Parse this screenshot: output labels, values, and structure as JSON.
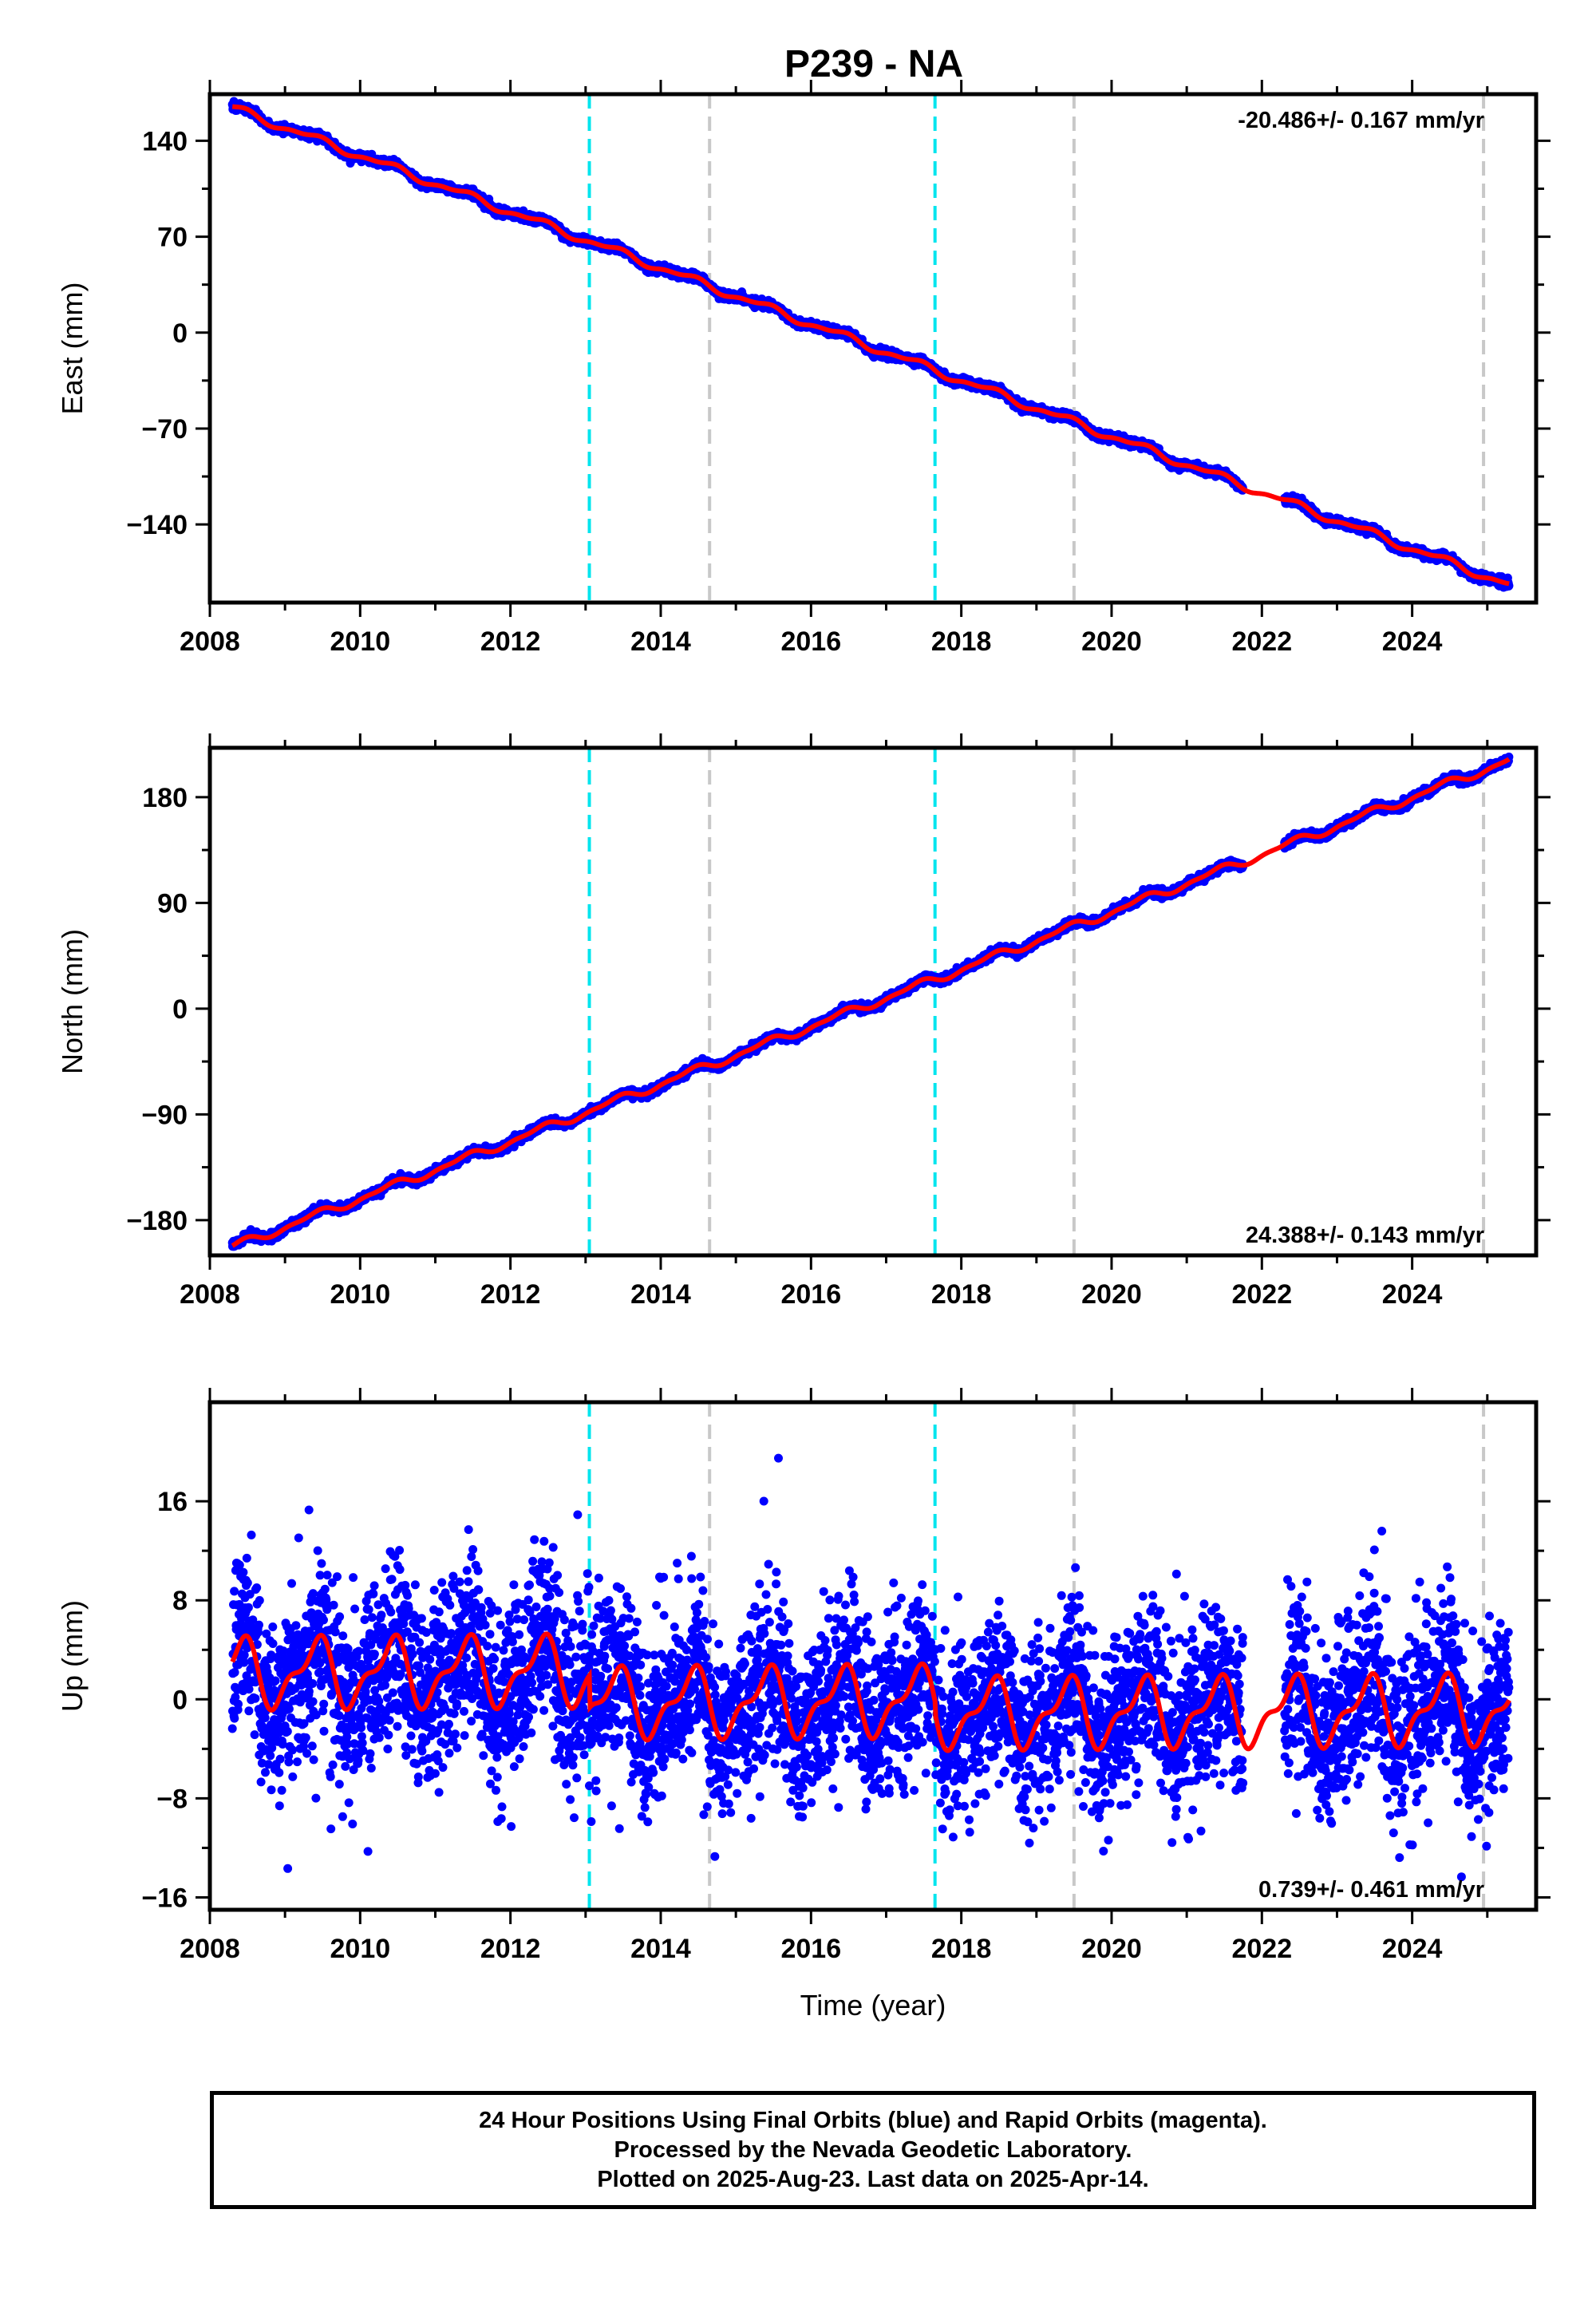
{
  "page": {
    "title": "P239 - NA"
  },
  "colors": {
    "final_orbits": "#0000ff",
    "model_fit": "#ff0000",
    "cyan_event": "#00e5ee",
    "gray_event": "#c8c8c8",
    "frame": "#000000"
  },
  "footer": {
    "line1": "24 Hour Positions Using Final Orbits (blue) and Rapid Orbits (magenta).",
    "line2": "Processed by the Nevada Geodetic Laboratory.",
    "line3": "Plotted on 2025-Aug-23. Last data on 2025-Apr-14."
  },
  "chart_data": [
    {
      "type": "scatter",
      "component": "east",
      "ylabel": "East (mm)",
      "xlabel": "",
      "rate_text": "-20.486+/- 0.167 mm/yr",
      "rate_position": "top-right",
      "xlim": [
        2008.0,
        2025.65
      ],
      "ylim": [
        -197,
        174
      ],
      "xticks": [
        2008,
        2010,
        2012,
        2014,
        2016,
        2018,
        2020,
        2022,
        2024
      ],
      "yticks": [
        140,
        70,
        0,
        -70,
        -140
      ],
      "ytick_labels": [
        "140",
        "70",
        "0",
        "−70",
        "−140"
      ],
      "rate": -20.486,
      "value_at_2008_3": 164,
      "seasonal_amplitude": 2.5,
      "scatter_sd": 1.4,
      "gap": [
        2021.75,
        2022.3
      ],
      "data_start": 2008.3,
      "data_end": 2025.29,
      "grid": false
    },
    {
      "type": "scatter",
      "component": "north",
      "ylabel": "North (mm)",
      "xlabel": "",
      "rate_text": "24.388+/- 0.143 mm/yr",
      "rate_position": "bottom-right",
      "xlim": [
        2008.0,
        2025.65
      ],
      "ylim": [
        -210,
        222
      ],
      "xticks": [
        2008,
        2010,
        2012,
        2014,
        2016,
        2018,
        2020,
        2022,
        2024
      ],
      "yticks": [
        180,
        90,
        0,
        -90,
        -180
      ],
      "ytick_labels": [
        "180",
        "90",
        "0",
        "−90",
        "−180"
      ],
      "rate": 24.388,
      "value_at_2008_3": -203,
      "seasonal_amplitude": 3,
      "scatter_sd": 1.6,
      "gap": [
        2021.75,
        2022.3
      ],
      "data_start": 2008.3,
      "data_end": 2025.29,
      "grid": false
    },
    {
      "type": "scatter",
      "component": "up",
      "ylabel": "Up (mm)",
      "xlabel": "Time (year)",
      "rate_text": "0.739+/- 0.461 mm/yr",
      "rate_position": "bottom-right",
      "xlim": [
        2008.0,
        2025.65
      ],
      "ylim": [
        -17,
        24
      ],
      "xticks": [
        2008,
        2010,
        2012,
        2014,
        2016,
        2018,
        2020,
        2022,
        2024
      ],
      "yticks": [
        16,
        8,
        0,
        -8,
        -16
      ],
      "ytick_labels": [
        "16",
        "8",
        "0",
        "−8",
        "−16"
      ],
      "rate": 0.739,
      "seasonal_amplitude": 2.4,
      "scatter_sd": 3.4,
      "gap": [
        2021.75,
        2022.3
      ],
      "data_start": 2008.3,
      "data_end": 2025.29,
      "offsets": [
        {
          "from": 2008.3,
          "to": 2013.05,
          "level": 2.4
        },
        {
          "from": 2013.05,
          "to": 2017.65,
          "level": -0.2
        },
        {
          "from": 2017.65,
          "to": 2025.3,
          "level": -1.2
        }
      ],
      "grid": false
    }
  ],
  "events": {
    "cyan_dashed": [
      2013.05,
      2017.65
    ],
    "gray_dashed": [
      2014.65,
      2019.5,
      2024.95
    ]
  }
}
